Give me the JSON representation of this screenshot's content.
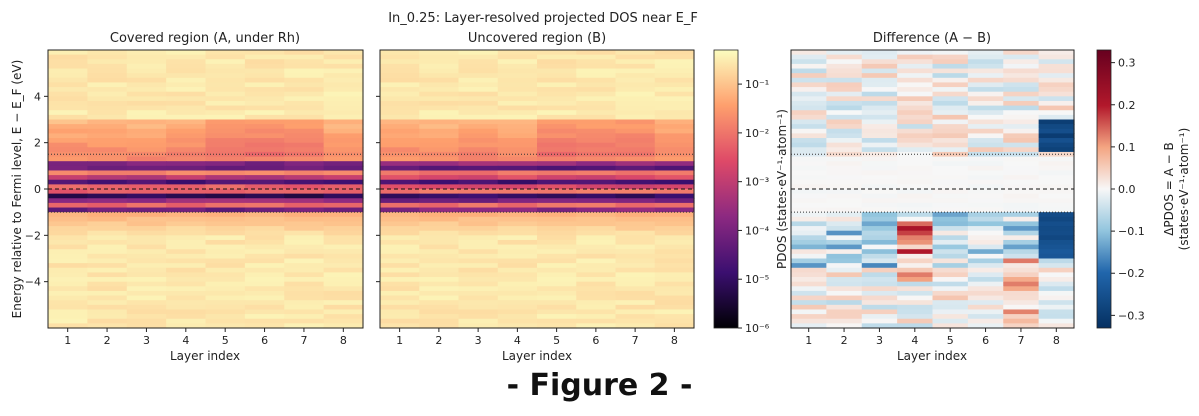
{
  "figure": {
    "suptitle": "In_0.25: Layer-resolved projected DOS near E_F",
    "caption": "- Figure 2 -"
  },
  "chart_data": [
    {
      "type": "heatmap",
      "title": "Covered region (A, under Rh)",
      "xlabel": "Layer index",
      "ylabel": "Energy relative to Fermi level,  E − E_F  (eV)",
      "x": [
        1,
        2,
        3,
        4,
        5,
        6,
        7,
        8
      ],
      "xlim": [
        0.5,
        8.5
      ],
      "ylim": [
        -6,
        6
      ],
      "yticks": [
        -4,
        -2,
        0,
        2,
        4
      ],
      "ef_line": 0,
      "window_lines": [
        1.5,
        -1.0
      ],
      "colormap": "magma",
      "value_scale": "log"
    },
    {
      "type": "heatmap",
      "title": "Uncovered region (B)",
      "xlabel": "Layer index",
      "x": [
        1,
        2,
        3,
        4,
        5,
        6,
        7,
        8
      ],
      "xlim": [
        0.5,
        8.5
      ],
      "ylim": [
        -6,
        6
      ],
      "ef_line": 0,
      "window_lines": [
        1.5,
        -1.0
      ],
      "colormap": "magma",
      "value_scale": "log",
      "colorbar": {
        "tick_labels": [
          "10⁻¹",
          "10⁻²",
          "10⁻³",
          "10⁻⁴",
          "10⁻⁵",
          "10⁻⁶"
        ],
        "range": [
          1e-06,
          0.5
        ],
        "label": "PDOS (states·eV⁻¹·atom⁻¹)"
      }
    },
    {
      "type": "heatmap",
      "title": "Difference (A − B)",
      "xlabel": "Layer index",
      "x": [
        1,
        2,
        3,
        4,
        5,
        6,
        7,
        8
      ],
      "xlim": [
        0.5,
        8.5
      ],
      "ylim": [
        -6,
        6
      ],
      "ef_line": 0,
      "window_lines": [
        1.5,
        -1.0
      ],
      "colormap": "RdBu_r",
      "colorbar": {
        "ticks": [
          0.3,
          0.2,
          0.1,
          0.0,
          -0.1,
          -0.2,
          -0.3
        ],
        "tick_labels": [
          "0.3",
          "0.2",
          "0.1",
          "0.0",
          "−0.1",
          "−0.2",
          "−0.3"
        ],
        "range": [
          -0.33,
          0.33
        ],
        "label": "ΔPDOS = A − B",
        "label2": "(states·eV⁻¹·atom⁻¹)"
      }
    }
  ]
}
